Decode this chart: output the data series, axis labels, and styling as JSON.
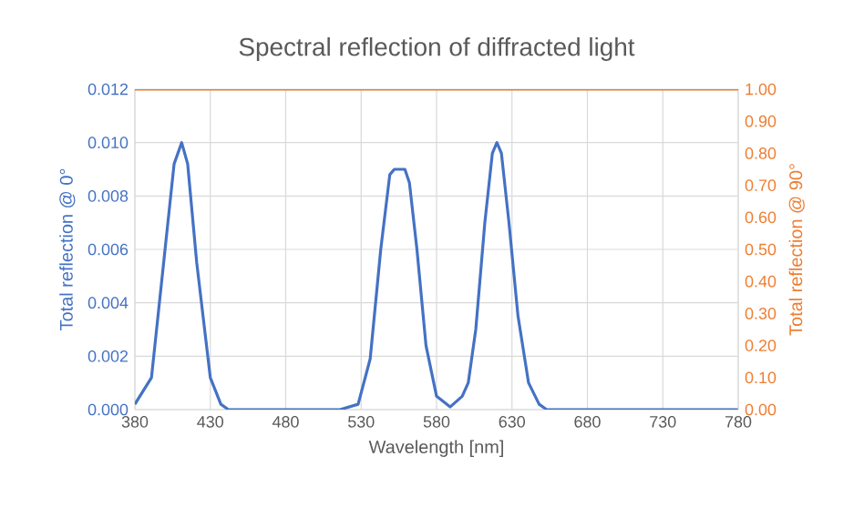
{
  "chart_data": {
    "type": "line",
    "title": "Spectral reflection of diffracted light",
    "xlabel": "Wavelength [nm]",
    "ylabel": "Total reflection @ 0°",
    "y2label": "Total reflection @ 90°",
    "xlim": [
      380,
      780
    ],
    "xticks": [
      380,
      430,
      480,
      530,
      580,
      630,
      680,
      730,
      780
    ],
    "ylim": [
      0,
      0.012
    ],
    "yticks": [
      {
        "value": 0,
        "label": "0.000"
      },
      {
        "value": 0.002,
        "label": "0.002"
      },
      {
        "value": 0.004,
        "label": "0.004"
      },
      {
        "value": 0.006,
        "label": "0.006"
      },
      {
        "value": 0.008,
        "label": "0.008"
      },
      {
        "value": 0.01,
        "label": "0.010"
      },
      {
        "value": 0.012,
        "label": "0.012"
      }
    ],
    "y2lim": [
      0,
      1
    ],
    "y2ticks": [
      {
        "value": 0,
        "label": "0.00"
      },
      {
        "value": 0.1,
        "label": "0.10"
      },
      {
        "value": 0.2,
        "label": "0.20"
      },
      {
        "value": 0.3,
        "label": "0.30"
      },
      {
        "value": 0.4,
        "label": "0.40"
      },
      {
        "value": 0.5,
        "label": "0.50"
      },
      {
        "value": 0.6,
        "label": "0.60"
      },
      {
        "value": 0.7,
        "label": "0.70"
      },
      {
        "value": 0.8,
        "label": "0.80"
      },
      {
        "value": 0.9,
        "label": "0.90"
      },
      {
        "value": 1,
        "label": "1.00"
      }
    ],
    "grid": true,
    "marker": "none",
    "line_style": "solid",
    "series": [
      {
        "color": "#4472c4",
        "x": [
          380,
          391,
          400,
          406,
          411,
          415,
          421,
          430,
          437,
          442,
          516,
          528,
          536,
          543,
          549,
          552,
          559,
          562,
          567,
          573,
          580,
          589,
          597,
          601,
          606,
          612,
          617,
          620,
          623,
          628,
          634,
          641,
          648,
          653,
          780
        ],
        "values": [
          0.0002,
          0.0012,
          0.006,
          0.0092,
          0.01,
          0.0092,
          0.0055,
          0.0012,
          0.0002,
          0,
          0,
          0.0002,
          0.0019,
          0.006,
          0.0088,
          0.009,
          0.009,
          0.0085,
          0.006,
          0.0024,
          0.0005,
          0.0001,
          0.0005,
          0.001,
          0.003,
          0.007,
          0.0096,
          0.01,
          0.0096,
          0.007,
          0.0035,
          0.001,
          0.0002,
          0,
          0
        ]
      },
      {
        "color": "#ed7d31",
        "axis": "y2",
        "x": [
          380,
          780
        ],
        "values": [
          1,
          1
        ]
      }
    ]
  }
}
